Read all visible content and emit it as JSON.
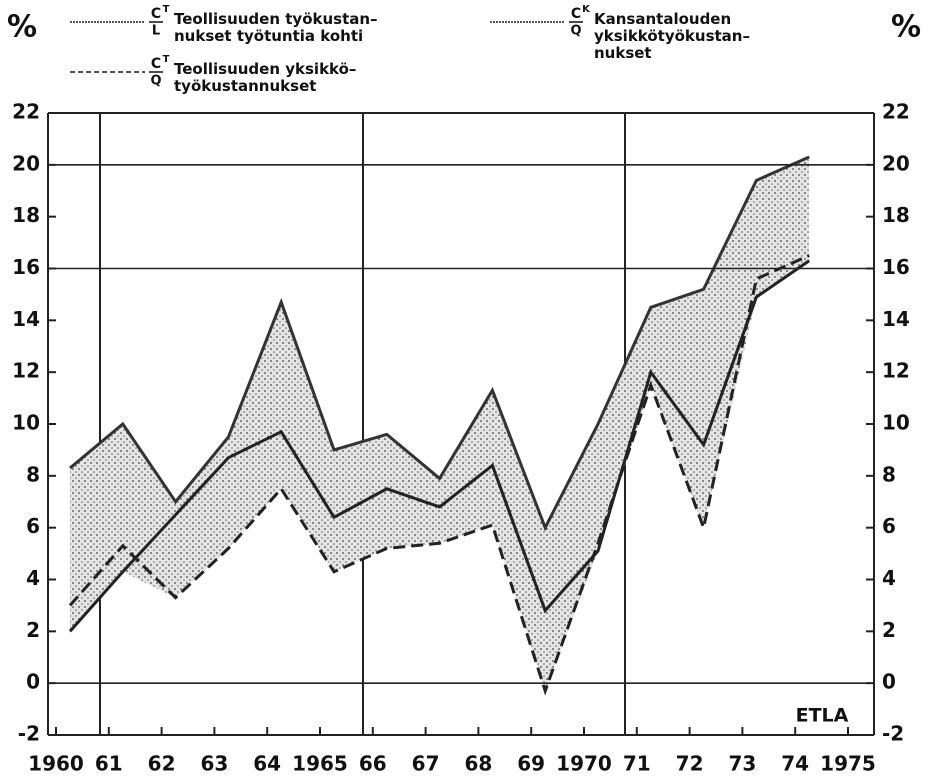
{
  "chart_data": {
    "type": "line",
    "categories": [
      "1960",
      "61",
      "62",
      "63",
      "64",
      "1965",
      "66",
      "67",
      "68",
      "69",
      "1970",
      "71",
      "72",
      "73",
      "74",
      "1975"
    ],
    "series": [
      {
        "name": "Teollisuuden työkustan–\nnukset työtuntia kohti",
        "symbol": {
          "top": "C",
          "sup": "T",
          "bottom": "L"
        },
        "color": "#333333",
        "dash": "none",
        "values": [
          8.3,
          10.0,
          7.0,
          9.5,
          14.7,
          9.0,
          9.6,
          7.9,
          11.3,
          6.0,
          10.0,
          14.5,
          15.2,
          19.4,
          20.3,
          null
        ]
      },
      {
        "name": "Kansantalouden\nyksikkötyökustan–\nnukset",
        "symbol": {
          "top": "C",
          "sup": "K",
          "bottom": "Q"
        },
        "color": "#222222",
        "dash": "none",
        "values": [
          2.0,
          4.3,
          6.5,
          8.7,
          9.7,
          6.4,
          7.5,
          6.8,
          8.4,
          2.8,
          5.1,
          12.0,
          9.2,
          14.9,
          16.3,
          null
        ]
      },
      {
        "name": "Teollisuuden yksikkö–\ntyökustannukset",
        "symbol": {
          "top": "C",
          "sup": "T",
          "bottom": "Q"
        },
        "color": "#222222",
        "dash": "12 6",
        "values": [
          3.0,
          5.3,
          3.3,
          5.2,
          7.5,
          4.3,
          5.2,
          5.4,
          6.1,
          -0.3,
          5.4,
          11.5,
          6.0,
          15.6,
          16.5,
          null
        ]
      }
    ],
    "ylim": [
      -2,
      22
    ],
    "yticks": [
      -2,
      0,
      2,
      4,
      6,
      8,
      10,
      12,
      14,
      16,
      18,
      20,
      22
    ],
    "y2lim": [
      -2,
      22
    ],
    "y2ticks": [
      -2,
      0,
      2,
      4,
      6,
      8,
      10,
      12,
      14,
      16,
      18,
      20,
      22
    ],
    "hgrid": [
      0,
      16,
      20
    ],
    "ylabel": "%",
    "y2label": "%",
    "annotation": "ETLA",
    "band_fill": "#cfcfcf"
  }
}
